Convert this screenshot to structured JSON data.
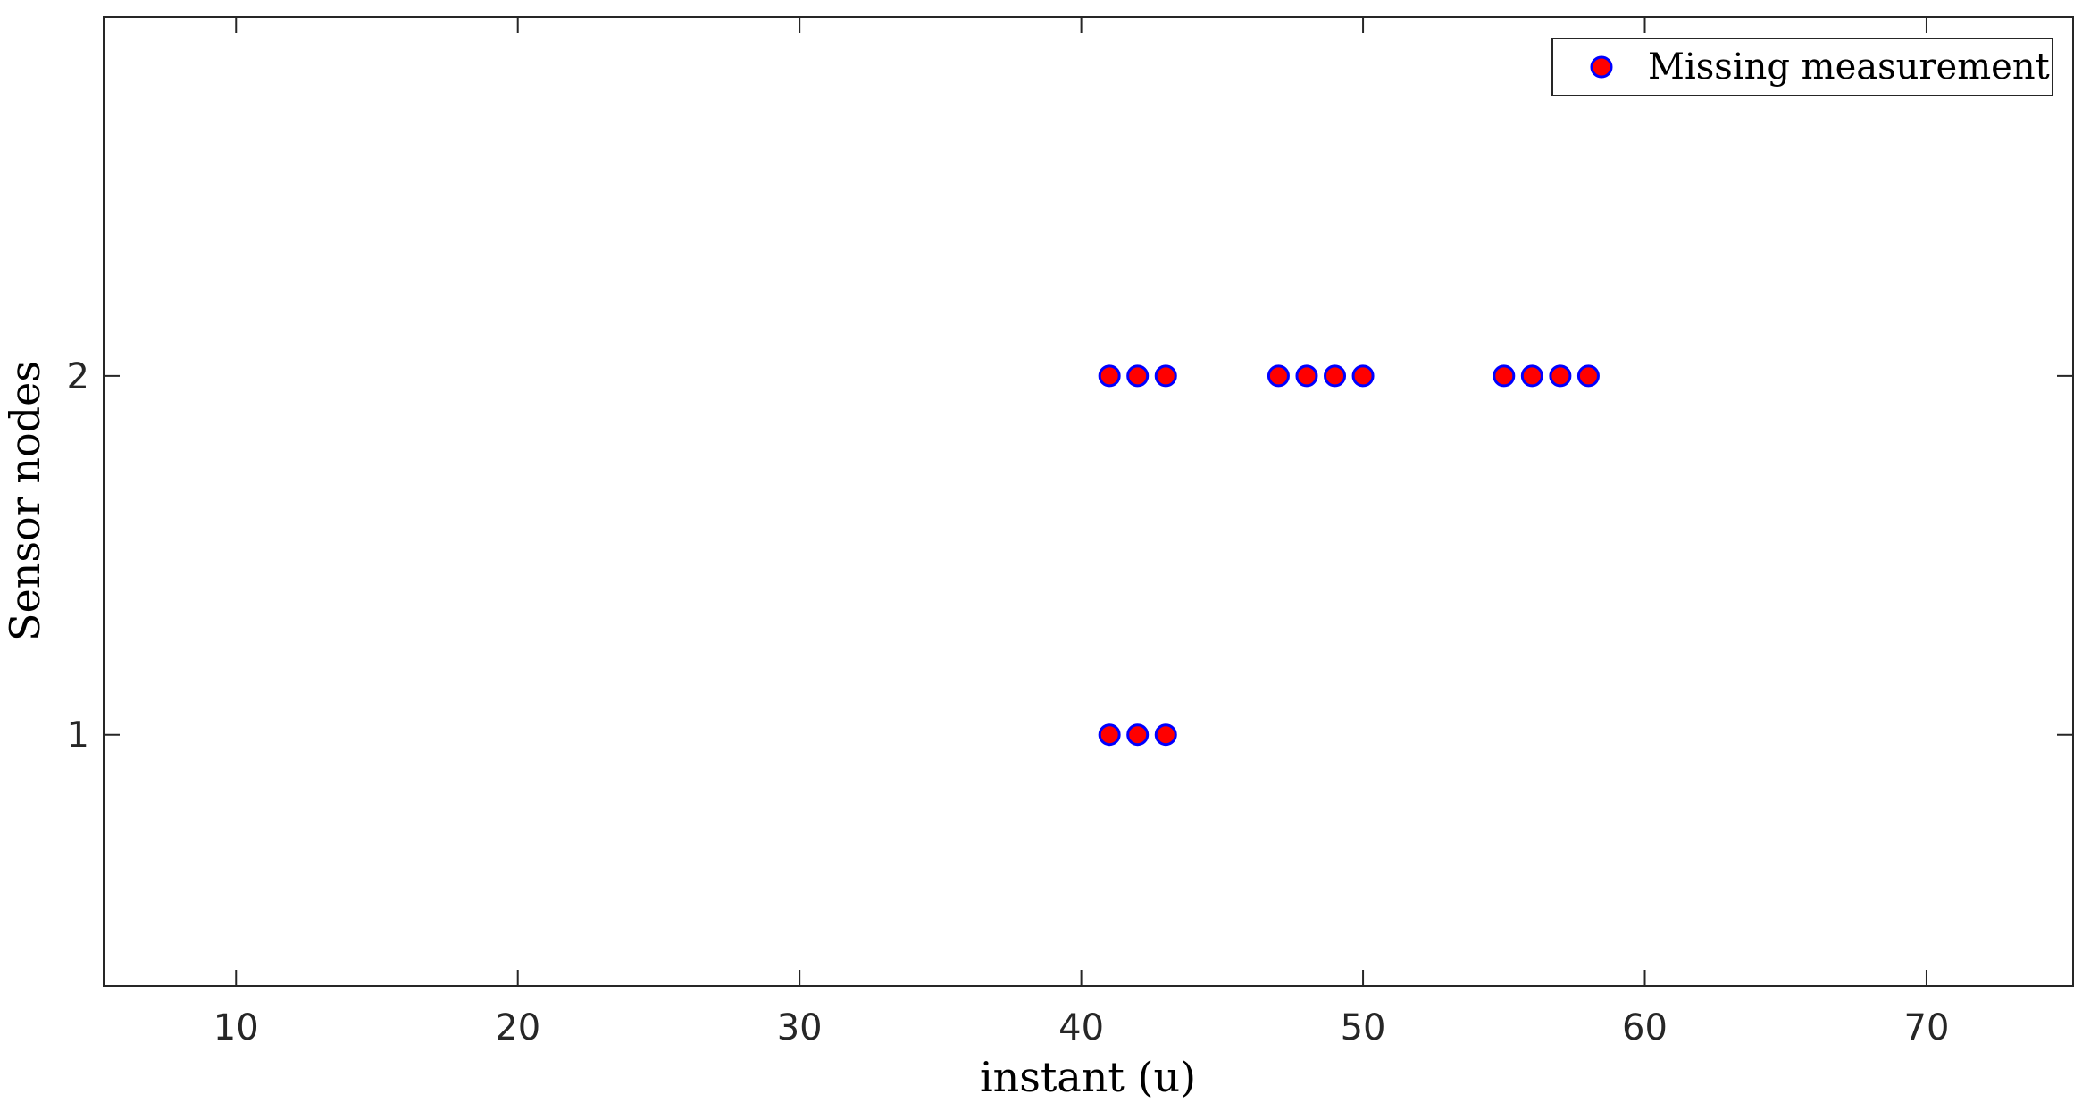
{
  "chart_data": {
    "type": "scatter",
    "xlabel": "instant (u)",
    "ylabel": "Sensor nodes",
    "xlim": [
      5.3,
      75.2
    ],
    "ylim": [
      0.3,
      3.0
    ],
    "xticks": [
      10,
      20,
      30,
      40,
      50,
      60,
      70
    ],
    "yticks": [
      1,
      2
    ],
    "grid": false,
    "legend_position": "top-right",
    "series": [
      {
        "name": "Missing measurement",
        "marker": "circle",
        "fill_color": "#ff0000",
        "edge_color": "#0000ff",
        "points": [
          {
            "x": 41,
            "y": 1
          },
          {
            "x": 42,
            "y": 1
          },
          {
            "x": 43,
            "y": 1
          },
          {
            "x": 41,
            "y": 2
          },
          {
            "x": 42,
            "y": 2
          },
          {
            "x": 43,
            "y": 2
          },
          {
            "x": 47,
            "y": 2
          },
          {
            "x": 48,
            "y": 2
          },
          {
            "x": 49,
            "y": 2
          },
          {
            "x": 50,
            "y": 2
          },
          {
            "x": 55,
            "y": 2
          },
          {
            "x": 56,
            "y": 2
          },
          {
            "x": 57,
            "y": 2
          },
          {
            "x": 58,
            "y": 2
          }
        ]
      }
    ]
  }
}
